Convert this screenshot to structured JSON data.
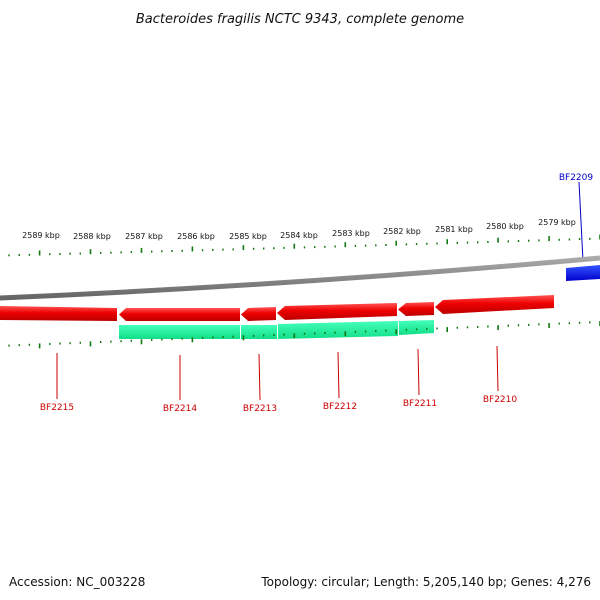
{
  "title": "Bacteroides fragilis NCTC 9343, complete genome",
  "footer": {
    "accession": "Accession: NC_003228",
    "summary": "Topology: circular; Length: 5,205,140 bp; Genes: 4,276"
  },
  "colors": {
    "forward_strand": "#0000ee",
    "reverse_strand": "#ee0000",
    "rna_feature": "#22ee99",
    "backbone": "#808080",
    "ticks": "#117711",
    "label_reverse": "#cc0000",
    "label_forward": "#0000cc"
  },
  "scale": {
    "unit": "kbp",
    "labels": [
      "2589 kbp",
      "2588 kbp",
      "2587 kbp",
      "2586 kbp",
      "2585 kbp",
      "2584 kbp",
      "2583 kbp",
      "2582 kbp",
      "2581 kbp",
      "2580 kbp",
      "2579 kbp"
    ],
    "positions_kbp": [
      2589,
      2588,
      2587,
      2586,
      2585,
      2584,
      2583,
      2582,
      2581,
      2580,
      2579
    ]
  },
  "genes": [
    {
      "id": "BF2215",
      "strand": "reverse",
      "label": "BF2215"
    },
    {
      "id": "BF2214",
      "strand": "reverse",
      "label": "BF2214"
    },
    {
      "id": "BF2213",
      "strand": "reverse",
      "label": "BF2213"
    },
    {
      "id": "BF2212",
      "strand": "reverse",
      "label": "BF2212"
    },
    {
      "id": "BF2211",
      "strand": "reverse",
      "label": "BF2211"
    },
    {
      "id": "BF2210",
      "strand": "reverse",
      "label": "BF2210"
    },
    {
      "id": "BF2209",
      "strand": "forward",
      "label": "BF2209"
    }
  ]
}
